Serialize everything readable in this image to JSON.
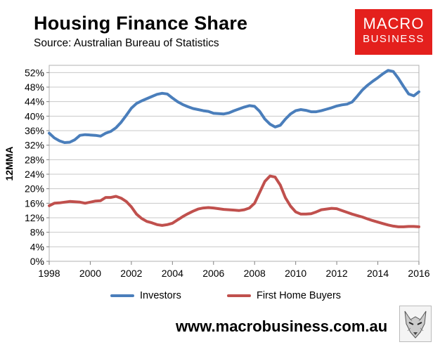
{
  "header": {
    "title": "Housing Finance Share",
    "subtitle": "Source: Australian Bureau of Statistics"
  },
  "logo": {
    "line1": "MACRO",
    "line2": "BUSINESS",
    "color": "#e4201d"
  },
  "footer": {
    "url": "www.macrobusiness.com.au"
  },
  "chart_data": {
    "type": "line",
    "title": "Housing Finance Share",
    "ylabel": "12MMA",
    "xlim": [
      1998,
      2016
    ],
    "ylim": [
      0,
      54
    ],
    "xticks": [
      1998,
      2000,
      2002,
      2004,
      2006,
      2008,
      2010,
      2012,
      2014,
      2016
    ],
    "xtick_labels": [
      "1998",
      "2000",
      "2002",
      "2004",
      "2006",
      "2008",
      "2010",
      "2012",
      "2014",
      "2016"
    ],
    "yticks": [
      0,
      4,
      8,
      12,
      16,
      20,
      24,
      28,
      32,
      36,
      40,
      44,
      48,
      52
    ],
    "ytick_labels": [
      "0%",
      "4%",
      "8%",
      "12%",
      "16%",
      "20%",
      "24%",
      "28%",
      "32%",
      "36%",
      "40%",
      "44%",
      "48%",
      "52%"
    ],
    "grid": "horizontal",
    "legend": "bottom",
    "series": [
      {
        "name": "Investors",
        "color": "#4a7ebb",
        "x": [
          1998.0,
          1998.25,
          1998.5,
          1998.75,
          1999.0,
          1999.25,
          1999.5,
          1999.75,
          2000.0,
          2000.25,
          2000.5,
          2000.75,
          2001.0,
          2001.25,
          2001.5,
          2001.75,
          2002.0,
          2002.25,
          2002.5,
          2002.75,
          2003.0,
          2003.25,
          2003.5,
          2003.75,
          2004.0,
          2004.25,
          2004.5,
          2004.75,
          2005.0,
          2005.25,
          2005.5,
          2005.75,
          2006.0,
          2006.25,
          2006.5,
          2006.75,
          2007.0,
          2007.25,
          2007.5,
          2007.75,
          2008.0,
          2008.25,
          2008.5,
          2008.75,
          2009.0,
          2009.25,
          2009.5,
          2009.75,
          2010.0,
          2010.25,
          2010.5,
          2010.75,
          2011.0,
          2011.25,
          2011.5,
          2011.75,
          2012.0,
          2012.25,
          2012.5,
          2012.75,
          2013.0,
          2013.25,
          2013.5,
          2013.75,
          2014.0,
          2014.25,
          2014.5,
          2014.75,
          2015.0,
          2015.25,
          2015.5,
          2015.75,
          2016.0
        ],
        "values": [
          35.3,
          34.0,
          33.2,
          32.7,
          32.8,
          33.5,
          34.7,
          34.9,
          34.8,
          34.7,
          34.5,
          35.3,
          35.8,
          36.8,
          38.3,
          40.2,
          42.2,
          43.5,
          44.2,
          44.8,
          45.4,
          46.0,
          46.3,
          46.1,
          45.0,
          44.0,
          43.2,
          42.6,
          42.1,
          41.8,
          41.5,
          41.3,
          40.8,
          40.7,
          40.6,
          40.9,
          41.5,
          42.0,
          42.5,
          42.9,
          42.7,
          41.3,
          39.2,
          37.8,
          37.0,
          37.5,
          39.2,
          40.6,
          41.5,
          41.8,
          41.6,
          41.2,
          41.2,
          41.5,
          41.9,
          42.3,
          42.8,
          43.1,
          43.3,
          43.9,
          45.5,
          47.2,
          48.5,
          49.6,
          50.6,
          51.7,
          52.6,
          52.3,
          50.4,
          48.2,
          46.1,
          45.6,
          46.7
        ]
      },
      {
        "name": "First Home Buyers",
        "color": "#c0504d",
        "x": [
          1998.0,
          1998.25,
          1998.5,
          1998.75,
          1999.0,
          1999.25,
          1999.5,
          1999.75,
          2000.0,
          2000.25,
          2000.5,
          2000.75,
          2001.0,
          2001.25,
          2001.5,
          2001.75,
          2002.0,
          2002.25,
          2002.5,
          2002.75,
          2003.0,
          2003.25,
          2003.5,
          2003.75,
          2004.0,
          2004.25,
          2004.5,
          2004.75,
          2005.0,
          2005.25,
          2005.5,
          2005.75,
          2006.0,
          2006.25,
          2006.5,
          2006.75,
          2007.0,
          2007.25,
          2007.5,
          2007.75,
          2008.0,
          2008.25,
          2008.5,
          2008.75,
          2009.0,
          2009.25,
          2009.5,
          2009.75,
          2010.0,
          2010.25,
          2010.5,
          2010.75,
          2011.0,
          2011.25,
          2011.5,
          2011.75,
          2012.0,
          2012.25,
          2012.5,
          2012.75,
          2013.0,
          2013.25,
          2013.5,
          2013.75,
          2014.0,
          2014.25,
          2014.5,
          2014.75,
          2015.0,
          2015.25,
          2015.5,
          2015.75,
          2016.0
        ],
        "values": [
          15.3,
          16.0,
          16.1,
          16.3,
          16.5,
          16.4,
          16.3,
          16.0,
          16.3,
          16.6,
          16.7,
          17.6,
          17.6,
          17.9,
          17.4,
          16.5,
          15.0,
          13.0,
          11.8,
          11.0,
          10.6,
          10.1,
          9.9,
          10.1,
          10.5,
          11.4,
          12.3,
          13.1,
          13.8,
          14.4,
          14.7,
          14.8,
          14.7,
          14.5,
          14.3,
          14.2,
          14.1,
          14.0,
          14.2,
          14.7,
          16.0,
          19.0,
          22.0,
          23.5,
          23.2,
          21.0,
          17.5,
          15.2,
          13.6,
          13.0,
          13.0,
          13.1,
          13.6,
          14.2,
          14.4,
          14.6,
          14.5,
          14.0,
          13.5,
          13.0,
          12.6,
          12.2,
          11.7,
          11.2,
          10.8,
          10.4,
          10.0,
          9.7,
          9.5,
          9.5,
          9.6,
          9.6,
          9.5
        ]
      }
    ]
  }
}
